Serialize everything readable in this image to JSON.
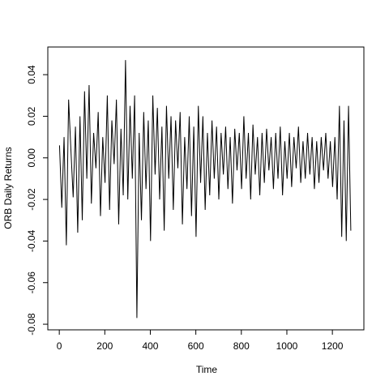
{
  "chart_data": {
    "type": "line",
    "x_label": "Time",
    "y_label": "ORB Daily Returns",
    "x": [
      1,
      11,
      21,
      31,
      41,
      51,
      61,
      71,
      81,
      91,
      101,
      111,
      121,
      131,
      141,
      151,
      161,
      171,
      181,
      191,
      201,
      211,
      221,
      231,
      241,
      251,
      261,
      271,
      281,
      291,
      301,
      311,
      321,
      331,
      341,
      351,
      361,
      371,
      381,
      391,
      401,
      411,
      421,
      431,
      441,
      451,
      461,
      471,
      481,
      491,
      501,
      511,
      521,
      531,
      541,
      551,
      561,
      571,
      581,
      591,
      601,
      611,
      621,
      631,
      641,
      651,
      661,
      671,
      681,
      691,
      701,
      711,
      721,
      731,
      741,
      751,
      761,
      771,
      781,
      791,
      801,
      811,
      821,
      831,
      841,
      851,
      861,
      871,
      881,
      891,
      901,
      911,
      921,
      931,
      941,
      951,
      961,
      971,
      981,
      991,
      1001,
      1011,
      1021,
      1031,
      1041,
      1051,
      1061,
      1071,
      1081,
      1091,
      1101,
      1111,
      1121,
      1131,
      1141,
      1151,
      1161,
      1171,
      1181,
      1191,
      1201,
      1211,
      1221,
      1231,
      1241,
      1251,
      1261,
      1271,
      1281
    ],
    "values": [
      0.006,
      -0.024,
      0.01,
      -0.042,
      0.028,
      0.004,
      -0.019,
      0.015,
      -0.036,
      0.02,
      -0.03,
      0.032,
      -0.01,
      0.035,
      -0.022,
      0.012,
      -0.005,
      0.022,
      -0.028,
      0.01,
      -0.012,
      0.03,
      -0.025,
      0.018,
      -0.003,
      0.028,
      -0.032,
      0.014,
      -0.018,
      0.047,
      -0.02,
      0.025,
      -0.01,
      0.03,
      -0.077,
      0.012,
      -0.03,
      0.022,
      -0.015,
      0.018,
      -0.04,
      0.03,
      -0.008,
      0.024,
      -0.02,
      0.015,
      -0.035,
      0.025,
      -0.01,
      0.02,
      -0.025,
      0.018,
      -0.005,
      0.022,
      -0.032,
      0.01,
      -0.015,
      0.02,
      -0.028,
      0.015,
      -0.038,
      0.025,
      -0.012,
      0.02,
      -0.025,
      0.012,
      -0.018,
      0.018,
      -0.01,
      0.015,
      -0.02,
      0.012,
      -0.008,
      0.015,
      -0.015,
      0.01,
      -0.022,
      0.014,
      -0.006,
      0.012,
      -0.015,
      0.02,
      -0.01,
      0.012,
      -0.02,
      0.016,
      -0.008,
      0.01,
      -0.018,
      0.012,
      -0.012,
      0.014,
      -0.006,
      0.01,
      -0.015,
      0.012,
      -0.01,
      0.015,
      -0.018,
      0.008,
      -0.01,
      0.012,
      -0.014,
      0.01,
      -0.005,
      0.015,
      -0.012,
      0.008,
      -0.01,
      0.012,
      -0.008,
      0.01,
      -0.015,
      0.008,
      -0.012,
      0.01,
      -0.006,
      0.012,
      -0.01,
      0.008,
      -0.014,
      0.01,
      -0.02,
      0.025,
      -0.038,
      0.018,
      -0.04,
      0.025,
      -0.035
    ],
    "color": "#000000",
    "xlim": [
      -50.4,
      1338.4
    ],
    "xticks": [
      0,
      200,
      400,
      600,
      800,
      1000,
      1200
    ],
    "ylim": [
      -0.0827,
      0.0533
    ],
    "yticks": [
      -0.08,
      -0.06,
      -0.04,
      -0.02,
      {
        "value": 0,
        "label": "0.00"
      },
      0.02,
      0.04
    ]
  }
}
